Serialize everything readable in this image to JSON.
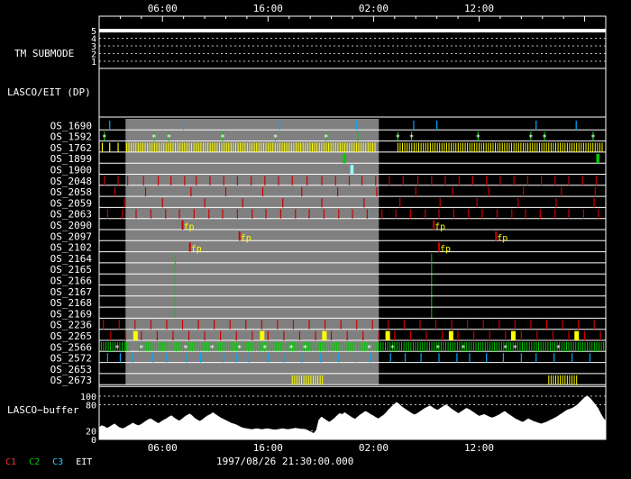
{
  "chart_data": {
    "type": "timeline",
    "time_axis": {
      "start_hour": 0,
      "end_hour": 48,
      "tick_labels": [
        {
          "hour": 6,
          "label": "06:00"
        },
        {
          "hour": 16,
          "label": "16:00"
        },
        {
          "hour": 26,
          "label": "02:00"
        },
        {
          "hour": 36,
          "label": "12:00"
        }
      ]
    },
    "night_shade": {
      "start_hour": 2.5,
      "end_hour": 26.5,
      "color": "#808080"
    },
    "tm_submode": {
      "label": "TM SUBMODE",
      "levels": [
        "5",
        "4",
        "3",
        "2",
        "1"
      ],
      "value": 5
    },
    "dp_label": "LASCO/EIT (DP)",
    "rows": [
      {
        "name": "OS_1690",
        "color": "#00aaff",
        "times": [
          1.0,
          8.0,
          17.1,
          24.4,
          29.8,
          32.0,
          41.4,
          45.2
        ]
      },
      {
        "name": "OS_1592",
        "color": "#00cc00",
        "star": "#ffffff",
        "stars": [
          0.5,
          5.2,
          6.6,
          11.7,
          16.7,
          21.5,
          28.3,
          29.6,
          35.9,
          40.9,
          42.2,
          46.8
        ],
        "times": [
          0.5,
          5.2,
          6.6,
          11.7,
          16.7,
          21.5,
          24.5,
          28.3,
          29.6,
          35.9,
          40.9,
          42.2,
          46.8
        ]
      },
      {
        "name": "OS_1762",
        "color": "#ffff00",
        "dense": [
          [
            2.6,
            26.3
          ],
          [
            28.3,
            47.8
          ]
        ],
        "times": [
          1.0,
          1.8,
          0.3
        ]
      },
      {
        "name": "OS_1899",
        "color": "#00cc00",
        "blocks": [
          [
            23.1,
            23.4
          ],
          [
            47.1,
            47.4
          ]
        ]
      },
      {
        "name": "OS_1900",
        "color": "#99ffff",
        "blocks": [
          [
            23.8,
            24.1
          ]
        ]
      },
      {
        "name": "OS_2048",
        "color": "#cc0000",
        "times": [
          0.5,
          1.8,
          2.7,
          4.2,
          5.6,
          6.8,
          8.1,
          9.2,
          10.5,
          11.8,
          13.1,
          14.4,
          15.7,
          17.0,
          18.3,
          19.7,
          21.1,
          22.4,
          23.7,
          24.9,
          26.2,
          27.5,
          28.8,
          30.2,
          31.5,
          32.8,
          34.1,
          35.4,
          36.7,
          38.0,
          39.3,
          40.6,
          41.9,
          43.2,
          44.5,
          45.8,
          47.1
        ]
      },
      {
        "name": "OS_2058",
        "color": "#cc0000",
        "times": [
          1.5,
          4.4,
          8.7,
          12.0,
          15.5,
          19.2,
          22.6,
          26.3,
          30.0,
          33.5,
          36.9,
          40.2,
          43.8,
          47.0
        ]
      },
      {
        "name": "OS_2059",
        "color": "#cc0000",
        "times": [
          2.4,
          6.0,
          10.0,
          13.6,
          17.4,
          21.1,
          25.1,
          28.5,
          32.3,
          35.8,
          39.7,
          43.3,
          46.9
        ]
      },
      {
        "name": "OS_2063",
        "color": "#cc0000",
        "times": [
          0.8,
          2.2,
          3.5,
          4.9,
          6.3,
          7.6,
          9.0,
          10.4,
          11.7,
          13.1,
          14.5,
          15.8,
          17.2,
          18.6,
          19.9,
          21.3,
          22.7,
          24.0,
          25.4,
          26.8,
          28.1,
          29.5,
          30.9,
          32.2,
          33.6,
          35.0,
          36.3,
          37.7,
          39.1,
          40.4,
          41.8,
          43.2,
          44.5,
          45.9,
          47.3
        ]
      },
      {
        "name": "OS_2090",
        "color": "#cc0000",
        "fp": [
          7.9,
          31.7
        ]
      },
      {
        "name": "OS_2097",
        "color": "#cc0000",
        "fp": [
          13.3,
          37.6
        ]
      },
      {
        "name": "OS_2102",
        "color": "#cc0000",
        "fp": [
          8.6,
          32.2
        ]
      },
      {
        "name": "OS_2164",
        "color": "#00cc00",
        "vline": [
          [
            7.2,
            20
          ],
          [
            31.5,
            20
          ]
        ]
      },
      {
        "name": "OS_2165",
        "color": "#00cc00"
      },
      {
        "name": "OS_2166",
        "color": "#00cc00"
      },
      {
        "name": "OS_2167",
        "color": "#00cc00"
      },
      {
        "name": "OS_2168",
        "color": "#00aaff"
      },
      {
        "name": "OS_2169",
        "color": "#00aaff"
      },
      {
        "name": "OS_2236",
        "color": "#cc0000",
        "times": [
          0.4,
          1.9,
          3.4,
          4.9,
          6.4,
          7.9,
          9.4,
          10.9,
          12.4,
          13.9,
          15.4,
          16.9,
          18.4,
          19.9,
          21.4,
          22.9,
          24.4,
          25.9,
          27.4,
          28.9,
          30.4,
          31.9,
          33.4,
          34.9,
          36.4,
          37.9,
          39.4,
          40.9,
          42.4,
          43.9,
          45.4,
          46.9
        ]
      },
      {
        "name": "OS_2265",
        "color": "#cc0000",
        "times": [
          1.1,
          2.5,
          4.0,
          5.5,
          7.0,
          8.5,
          10.0,
          11.5,
          13.0,
          14.5,
          16.0,
          17.5,
          19.0,
          20.5,
          22.0,
          23.5,
          25.0,
          26.5,
          28.0,
          29.5,
          31.0,
          32.5,
          34.0,
          35.5,
          37.0,
          38.5,
          40.0,
          41.5,
          43.0,
          44.5,
          46.0,
          47.5
        ],
        "blocks_yellow": [
          3.4,
          15.4,
          21.3,
          27.3,
          33.3,
          39.2,
          45.2
        ]
      },
      {
        "name": "OS_2566",
        "color": "#00cc00",
        "dense": [
          [
            0.2,
            3.0
          ],
          [
            3.8,
            47.8
          ]
        ],
        "stars": [
          1.7,
          4.0,
          8.2,
          10.7,
          13.3,
          15.7,
          18.2,
          19.5,
          25.6,
          27.8,
          32.1,
          34.5,
          38.5,
          39.4,
          43.5
        ]
      },
      {
        "name": "OS_2572",
        "color": "#00aaff",
        "times": [
          0.8,
          2.0,
          3.2,
          5.1,
          6.4,
          8.3,
          9.6,
          11.8,
          13.0,
          14.2,
          16.0,
          17.5,
          19.2,
          21.0,
          22.7,
          24.3,
          25.7,
          27.6,
          29.0,
          30.5,
          32.2,
          33.9,
          35.1,
          36.7,
          38.3,
          40.0,
          41.4,
          43.1,
          44.8,
          46.5
        ]
      },
      {
        "name": "OS_2653",
        "color": "#00aaff"
      },
      {
        "name": "OS_2673",
        "color": "#ffff00",
        "dense": [
          [
            18.3,
            21.2
          ],
          [
            42.6,
            45.3
          ]
        ]
      }
    ],
    "fp_label": "fp",
    "fp_color": "#ffff00",
    "buffer": {
      "label": "LASCO−buffer",
      "tick_labels": [
        "100",
        "80",
        "20",
        "0"
      ],
      "tick_values": [
        100,
        80,
        20,
        0
      ],
      "ylim": [
        0,
        110
      ],
      "values": [
        28,
        32,
        30,
        26,
        29,
        33,
        36,
        31,
        27,
        25,
        27,
        31,
        34,
        38,
        35,
        32,
        34,
        38,
        42,
        46,
        48,
        44,
        40,
        37,
        41,
        45,
        48,
        52,
        55,
        50,
        46,
        43,
        47,
        52,
        56,
        59,
        55,
        49,
        45,
        42,
        46,
        51,
        55,
        58,
        62,
        58,
        54,
        50,
        47,
        44,
        41,
        38,
        36,
        34,
        31,
        28,
        26,
        25,
        24,
        23,
        24,
        25,
        24,
        23,
        24,
        25,
        24,
        23,
        22,
        23,
        24,
        25,
        24,
        23,
        24,
        25,
        26,
        25,
        24,
        24,
        23,
        20,
        17,
        14,
        21,
        45,
        52,
        48,
        44,
        40,
        44,
        49,
        55,
        60,
        58,
        62,
        58,
        54,
        50,
        47,
        52,
        57,
        61,
        65,
        62,
        58,
        55,
        51,
        48,
        52,
        56,
        62,
        69,
        75,
        80,
        86,
        82,
        76,
        72,
        68,
        64,
        60,
        57,
        60,
        64,
        68,
        72,
        75,
        78,
        74,
        70,
        68,
        72,
        76,
        80,
        77,
        72,
        68,
        64,
        60,
        64,
        68,
        72,
        70,
        66,
        62,
        58,
        54,
        56,
        58,
        55,
        52,
        50,
        52,
        55,
        58,
        62,
        65,
        60,
        56,
        52,
        48,
        45,
        42,
        40,
        44,
        48,
        45,
        42,
        40,
        38,
        36,
        38,
        40,
        43,
        46,
        49,
        52,
        56,
        60,
        64,
        68,
        70,
        72,
        76,
        80,
        86,
        92,
        98,
        100,
        95,
        88,
        80,
        72,
        60,
        50,
        42
      ]
    }
  },
  "footer": {
    "date": "1997/08/26 21:30:00.000",
    "legend": [
      {
        "label": "C1",
        "color": "#ff3333"
      },
      {
        "label": "C2",
        "color": "#00cc00"
      },
      {
        "label": "C3",
        "color": "#33ccff"
      },
      {
        "label": "EIT",
        "color": "#ffffff"
      }
    ]
  }
}
